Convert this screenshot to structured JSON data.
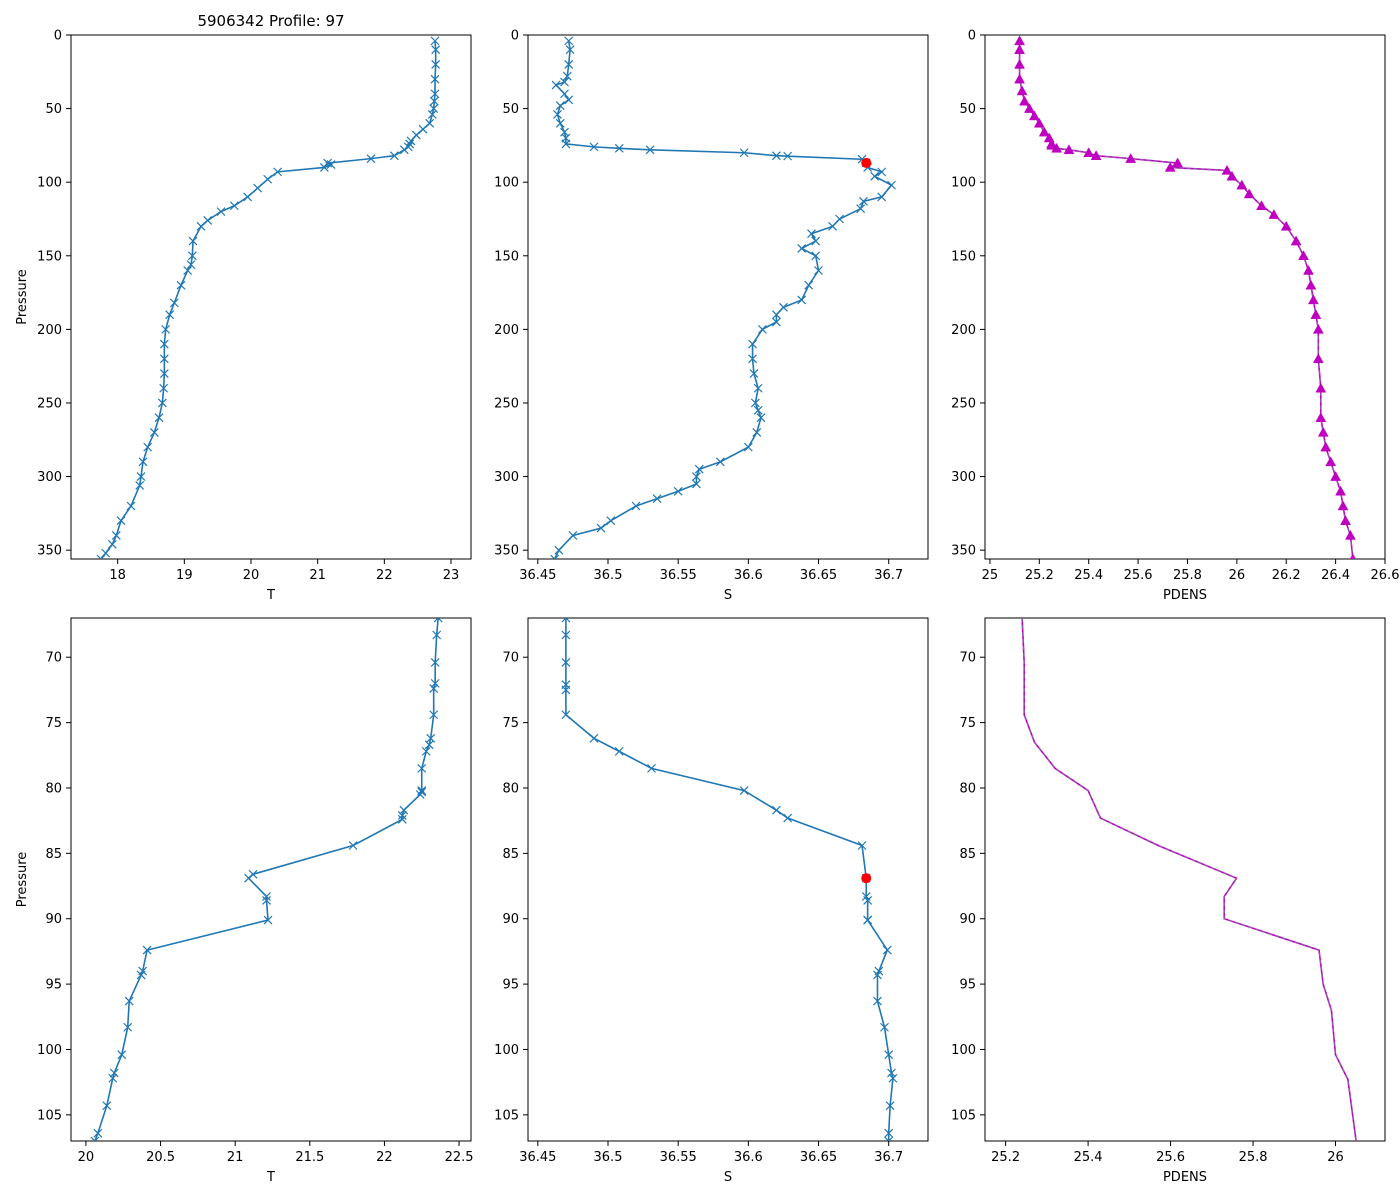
{
  "title": "5906342 Profile: 97",
  "colors": {
    "profile": "#1f77b4",
    "density": "#c000c0",
    "density_dash": "#8a5fa8",
    "flag": "#ff0000"
  },
  "chart_data": [
    {
      "id": "top-T",
      "type": "line",
      "marker": "x",
      "xlabel": "T",
      "ylabel": "Pressure",
      "xlim": [
        17.3,
        23.3
      ],
      "ylim": [
        356,
        0
      ],
      "invert_y": true,
      "xticks": [
        18,
        19,
        20,
        21,
        22,
        23
      ],
      "yticks": [
        0,
        50,
        100,
        150,
        200,
        250,
        300,
        350
      ],
      "x": [
        22.76,
        22.77,
        22.77,
        22.76,
        22.76,
        22.75,
        22.74,
        22.72,
        22.68,
        22.58,
        22.48,
        22.4,
        22.38,
        22.36,
        22.3,
        22.15,
        21.8,
        21.15,
        21.2,
        21.1,
        20.4,
        20.25,
        20.1,
        19.95,
        19.75,
        19.55,
        19.35,
        19.25,
        19.13,
        19.12,
        19.1,
        19.05,
        18.95,
        18.85,
        18.78,
        18.72,
        18.7,
        18.7,
        18.7,
        18.69,
        18.67,
        18.62,
        18.55,
        18.45,
        18.38,
        18.35,
        18.33,
        18.2,
        18.05,
        17.98,
        17.92,
        17.82,
        17.75
      ],
      "y": [
        4,
        10,
        20,
        30,
        40,
        45,
        50,
        54,
        60,
        64,
        68,
        72,
        74,
        76,
        78,
        82,
        84,
        87,
        88,
        90,
        93,
        98,
        104,
        110,
        116,
        120,
        126,
        130,
        140,
        150,
        156,
        160,
        170,
        182,
        190,
        200,
        210,
        220,
        230,
        240,
        250,
        260,
        270,
        280,
        290,
        300,
        306,
        320,
        330,
        340,
        346,
        352,
        356
      ],
      "flags": []
    },
    {
      "id": "top-S",
      "type": "line",
      "marker": "x",
      "xlabel": "S",
      "ylabel": "",
      "xlim": [
        36.443,
        36.728
      ],
      "ylim": [
        356,
        0
      ],
      "invert_y": true,
      "xticks": [
        36.45,
        36.5,
        36.55,
        36.6,
        36.65,
        36.7
      ],
      "yticks": [
        0,
        50,
        100,
        150,
        200,
        250,
        300,
        350
      ],
      "x": [
        36.472,
        36.473,
        36.472,
        36.471,
        36.469,
        36.463,
        36.469,
        36.472,
        36.466,
        36.464,
        36.466,
        36.469,
        36.47,
        36.47,
        36.49,
        36.508,
        36.53,
        36.597,
        36.62,
        36.628,
        36.681,
        36.684,
        36.685,
        36.695,
        36.69,
        36.702,
        36.695,
        36.682,
        36.68,
        36.665,
        36.66,
        36.645,
        36.648,
        36.638,
        36.648,
        36.65,
        36.643,
        36.638,
        36.625,
        36.62,
        36.62,
        36.61,
        36.603,
        36.603,
        36.604,
        36.607,
        36.605,
        36.607,
        36.609,
        36.606,
        36.6,
        36.58,
        36.565,
        36.563,
        36.563,
        36.55,
        36.535,
        36.52,
        36.502,
        36.495,
        36.475,
        36.465,
        36.462
      ],
      "y": [
        4,
        10,
        20,
        28,
        32,
        34,
        40,
        44,
        48,
        54,
        60,
        66,
        70,
        74,
        76,
        77,
        78,
        80,
        82,
        82.3,
        84.4,
        86.9,
        90,
        93,
        96,
        102,
        110,
        113,
        118,
        125,
        130,
        135,
        140,
        145,
        150,
        160,
        170,
        180,
        185,
        190,
        195,
        200,
        210,
        220,
        230,
        240,
        250,
        255,
        260,
        270,
        280,
        290,
        295,
        300,
        305,
        310,
        315,
        320,
        330,
        335,
        340,
        350,
        356
      ],
      "flags": [
        {
          "x": 36.684,
          "y": 86.9
        }
      ]
    },
    {
      "id": "top-PDENS",
      "type": "line",
      "marker": "triangle",
      "xlabel": "PDENS",
      "ylabel": "",
      "xlim": [
        24.98,
        26.6
      ],
      "ylim": [
        356,
        0
      ],
      "invert_y": true,
      "xticks": [
        25.0,
        25.2,
        25.4,
        25.6,
        25.8,
        26.0,
        26.2,
        26.4,
        26.6
      ],
      "yticks": [
        0,
        50,
        100,
        150,
        200,
        250,
        300,
        350
      ],
      "x": [
        25.12,
        25.12,
        25.12,
        25.12,
        25.13,
        25.14,
        25.16,
        25.18,
        25.2,
        25.22,
        25.24,
        25.25,
        25.25,
        25.27,
        25.32,
        25.4,
        25.43,
        25.57,
        25.76,
        25.73,
        25.96,
        25.98,
        26.02,
        26.05,
        26.1,
        26.15,
        26.2,
        26.24,
        26.27,
        26.29,
        26.3,
        26.31,
        26.32,
        26.33,
        26.33,
        26.34,
        26.34,
        26.35,
        26.36,
        26.38,
        26.4,
        26.42,
        26.43,
        26.44,
        26.46,
        26.47
      ],
      "y": [
        4,
        10,
        20,
        30,
        38,
        45,
        50,
        55,
        60,
        66,
        70,
        74,
        75,
        77,
        78,
        80,
        82,
        84,
        87,
        90,
        92,
        96,
        102,
        108,
        116,
        122,
        130,
        140,
        150,
        160,
        170,
        180,
        190,
        200,
        220,
        240,
        260,
        270,
        280,
        290,
        300,
        310,
        320,
        330,
        340,
        356
      ],
      "flags": []
    },
    {
      "id": "bot-T",
      "type": "line",
      "marker": "x",
      "xlabel": "T",
      "ylabel": "Pressure",
      "xlim": [
        19.9,
        22.58
      ],
      "ylim": [
        107,
        67
      ],
      "invert_y": true,
      "xticks": [
        20.0,
        20.5,
        21.0,
        21.5,
        22.0,
        22.5
      ],
      "yticks": [
        70,
        75,
        80,
        85,
        90,
        95,
        100,
        105
      ],
      "x": [
        22.36,
        22.35,
        22.34,
        22.34,
        22.33,
        22.33,
        22.31,
        22.3,
        22.28,
        22.25,
        22.25,
        22.25,
        22.24,
        22.13,
        22.12,
        22.12,
        21.79,
        21.12,
        21.09,
        21.21,
        21.21,
        21.22,
        20.41,
        20.38,
        20.37,
        20.29,
        20.28,
        20.24,
        20.19,
        20.18,
        20.14,
        20.08,
        20.06
      ],
      "y": [
        67,
        68.3,
        70.4,
        72,
        72.4,
        74.4,
        76.2,
        76.7,
        77.2,
        78.5,
        80.2,
        80.3,
        80.5,
        81.7,
        82.1,
        82.4,
        84.4,
        86.6,
        86.9,
        88.3,
        88.6,
        90.1,
        92.4,
        94,
        94.3,
        96.3,
        98.3,
        100.4,
        101.8,
        102.2,
        104.3,
        106.4,
        107
      ],
      "flags": []
    },
    {
      "id": "bot-S",
      "type": "line",
      "marker": "x",
      "xlabel": "S",
      "ylabel": "",
      "xlim": [
        36.443,
        36.728
      ],
      "ylim": [
        107,
        67
      ],
      "invert_y": true,
      "xticks": [
        36.45,
        36.5,
        36.55,
        36.6,
        36.65,
        36.7
      ],
      "yticks": [
        70,
        75,
        80,
        85,
        90,
        95,
        100,
        105
      ],
      "x": [
        36.47,
        36.47,
        36.47,
        36.47,
        36.47,
        36.47,
        36.49,
        36.508,
        36.531,
        36.597,
        36.62,
        36.628,
        36.681,
        36.684,
        36.684,
        36.685,
        36.685,
        36.685,
        36.699,
        36.693,
        36.692,
        36.692,
        36.697,
        36.7,
        36.702,
        36.703,
        36.701,
        36.7,
        36.7
      ],
      "y": [
        67,
        68.3,
        70.4,
        72.1,
        72.5,
        74.4,
        76.2,
        77.2,
        78.5,
        80.2,
        81.7,
        82.3,
        84.4,
        86.9,
        88.3,
        88.6,
        90.1,
        90.1,
        92.4,
        94,
        94.3,
        96.3,
        98.3,
        100.4,
        101.8,
        102.2,
        104.3,
        106.4,
        107
      ],
      "flags": [
        {
          "x": 36.684,
          "y": 86.9
        }
      ]
    },
    {
      "id": "bot-PDENS",
      "type": "line",
      "marker": "none",
      "xlabel": "PDENS",
      "ylabel": "",
      "xlim": [
        25.15,
        26.12
      ],
      "ylim": [
        107,
        67
      ],
      "invert_y": true,
      "xticks": [
        25.2,
        25.4,
        25.6,
        25.8,
        26.0
      ],
      "yticks": [
        70,
        75,
        80,
        85,
        90,
        95,
        100,
        105
      ],
      "x": [
        25.24,
        25.245,
        25.245,
        25.27,
        25.32,
        25.4,
        25.43,
        25.57,
        25.76,
        25.73,
        25.73,
        25.96,
        25.97,
        25.99,
        26.0,
        26.03,
        26.05
      ],
      "y": [
        67,
        70.4,
        74.4,
        76.5,
        78.5,
        80.2,
        82.3,
        84.4,
        86.9,
        88.3,
        90,
        92.4,
        95,
        97,
        100.4,
        102.3,
        107
      ],
      "flags": []
    }
  ]
}
